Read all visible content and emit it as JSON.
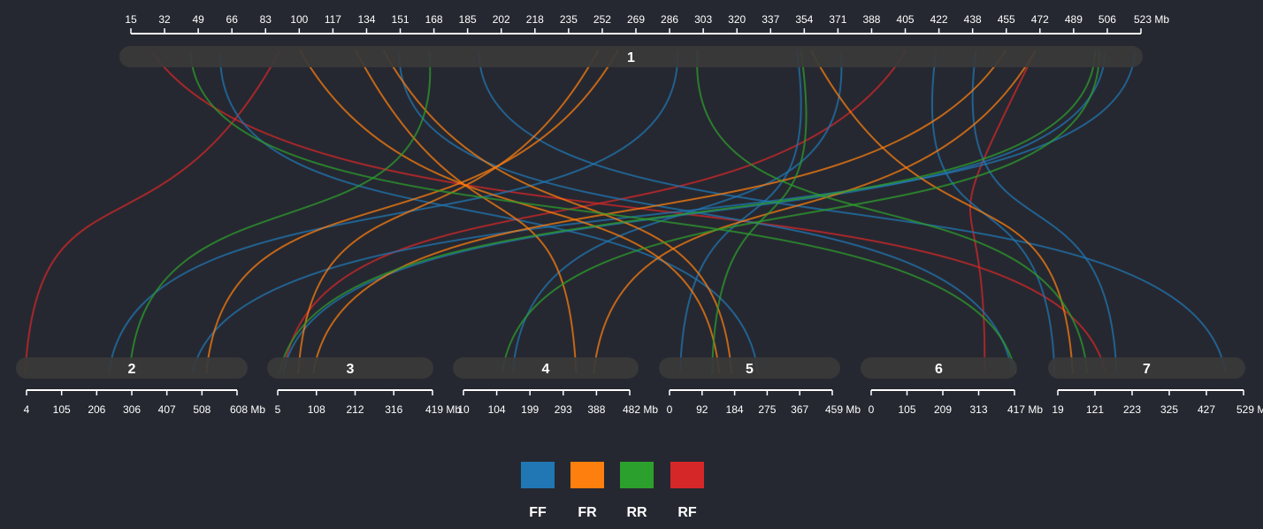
{
  "colors": {
    "background": "#262831",
    "chromosome_band": "#3a3a3a",
    "axis": "#ffffff",
    "FF": "#2077b4",
    "FR": "#ff7f0e",
    "RR": "#2ca02c",
    "RF": "#d62728"
  },
  "chromosomes": {
    "top": [
      {
        "id": "1",
        "ticks": [
          "15",
          "32",
          "49",
          "66",
          "83",
          "100",
          "117",
          "134",
          "151",
          "168",
          "185",
          "202",
          "218",
          "235",
          "252",
          "269",
          "286",
          "303",
          "320",
          "337",
          "354",
          "371",
          "388",
          "405",
          "422",
          "438",
          "455",
          "472",
          "489",
          "506",
          "523"
        ],
        "unit": "Mb"
      }
    ],
    "bottom": [
      {
        "id": "2",
        "ticks": [
          "4",
          "105",
          "206",
          "306",
          "407",
          "508",
          "608"
        ],
        "unit": "Mb"
      },
      {
        "id": "3",
        "ticks": [
          "5",
          "108",
          "212",
          "316",
          "419"
        ],
        "unit": "Mb"
      },
      {
        "id": "4",
        "ticks": [
          "10",
          "104",
          "199",
          "293",
          "388",
          "482"
        ],
        "unit": "Mb"
      },
      {
        "id": "5",
        "ticks": [
          "0",
          "92",
          "184",
          "275",
          "367",
          "459"
        ],
        "unit": "Mb"
      },
      {
        "id": "6",
        "ticks": [
          "0",
          "105",
          "209",
          "313",
          "417"
        ],
        "unit": "Mb"
      },
      {
        "id": "7",
        "ticks": [
          "19",
          "121",
          "223",
          "325",
          "427",
          "529"
        ],
        "unit": "M"
      }
    ]
  },
  "legend": [
    {
      "key": "FF",
      "label": "FF"
    },
    {
      "key": "FR",
      "label": "FR"
    },
    {
      "key": "RR",
      "label": "RR"
    },
    {
      "key": "RF",
      "label": "RF"
    }
  ],
  "links": [
    {
      "type": "RF",
      "from": {
        "chr": "1",
        "pos": 25
      },
      "to": {
        "chr": "7",
        "pos": 150
      }
    },
    {
      "type": "RF",
      "from": {
        "chr": "1",
        "pos": 90
      },
      "to": {
        "chr": "2",
        "pos": 0
      }
    },
    {
      "type": "RF",
      "from": {
        "chr": "1",
        "pos": 405
      },
      "to": {
        "chr": "3",
        "pos": 20
      }
    },
    {
      "type": "RF",
      "from": {
        "chr": "1",
        "pos": 470
      },
      "to": {
        "chr": "6",
        "pos": 330
      }
    },
    {
      "type": "FF",
      "from": {
        "chr": "1",
        "pos": 60
      },
      "to": {
        "chr": "5",
        "pos": 250
      }
    },
    {
      "type": "FF",
      "from": {
        "chr": "1",
        "pos": 150
      },
      "to": {
        "chr": "6",
        "pos": 410
      }
    },
    {
      "type": "FF",
      "from": {
        "chr": "1",
        "pos": 190
      },
      "to": {
        "chr": "7",
        "pos": 480
      }
    },
    {
      "type": "FF",
      "from": {
        "chr": "1",
        "pos": 290
      },
      "to": {
        "chr": "2",
        "pos": 240
      }
    },
    {
      "type": "FF",
      "from": {
        "chr": "1",
        "pos": 350
      },
      "to": {
        "chr": "5",
        "pos": 30
      }
    },
    {
      "type": "FF",
      "from": {
        "chr": "1",
        "pos": 372
      },
      "to": {
        "chr": "4",
        "pos": 150
      }
    },
    {
      "type": "FF",
      "from": {
        "chr": "1",
        "pos": 420
      },
      "to": {
        "chr": "7",
        "pos": 10
      }
    },
    {
      "type": "FF",
      "from": {
        "chr": "1",
        "pos": 440
      },
      "to": {
        "chr": "7",
        "pos": 180
      }
    },
    {
      "type": "FF",
      "from": {
        "chr": "1",
        "pos": 520
      },
      "to": {
        "chr": "2",
        "pos": 480
      }
    },
    {
      "type": "FF",
      "from": {
        "chr": "1",
        "pos": 505
      },
      "to": {
        "chr": "3",
        "pos": 20
      }
    },
    {
      "type": "FR",
      "from": {
        "chr": "1",
        "pos": 100
      },
      "to": {
        "chr": "5",
        "pos": 140
      }
    },
    {
      "type": "FR",
      "from": {
        "chr": "1",
        "pos": 128
      },
      "to": {
        "chr": "4",
        "pos": 330
      }
    },
    {
      "type": "FR",
      "from": {
        "chr": "1",
        "pos": 142
      },
      "to": {
        "chr": "5",
        "pos": 175
      }
    },
    {
      "type": "FR",
      "from": {
        "chr": "1",
        "pos": 250
      },
      "to": {
        "chr": "3",
        "pos": 60
      }
    },
    {
      "type": "FR",
      "from": {
        "chr": "1",
        "pos": 260
      },
      "to": {
        "chr": "2",
        "pos": 520
      }
    },
    {
      "type": "FR",
      "from": {
        "chr": "1",
        "pos": 357
      },
      "to": {
        "chr": "7",
        "pos": 60
      }
    },
    {
      "type": "FR",
      "from": {
        "chr": "1",
        "pos": 455
      },
      "to": {
        "chr": "3",
        "pos": 100
      }
    },
    {
      "type": "FR",
      "from": {
        "chr": "1",
        "pos": 470
      },
      "to": {
        "chr": "4",
        "pos": 380
      }
    },
    {
      "type": "RR",
      "from": {
        "chr": "1",
        "pos": 45
      },
      "to": {
        "chr": "6",
        "pos": 420
      }
    },
    {
      "type": "RR",
      "from": {
        "chr": "1",
        "pos": 165
      },
      "to": {
        "chr": "2",
        "pos": 300
      }
    },
    {
      "type": "RR",
      "from": {
        "chr": "1",
        "pos": 300
      },
      "to": {
        "chr": "7",
        "pos": 100
      }
    },
    {
      "type": "RR",
      "from": {
        "chr": "1",
        "pos": 352
      },
      "to": {
        "chr": "5",
        "pos": 120
      }
    },
    {
      "type": "RR",
      "from": {
        "chr": "1",
        "pos": 502
      },
      "to": {
        "chr": "4",
        "pos": 120
      }
    },
    {
      "type": "RR",
      "from": {
        "chr": "1",
        "pos": 500
      },
      "to": {
        "chr": "3",
        "pos": 10
      }
    }
  ]
}
